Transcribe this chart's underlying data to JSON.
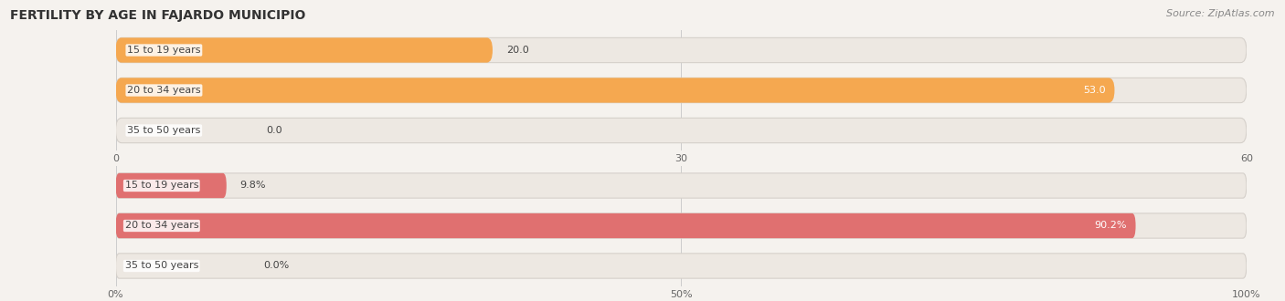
{
  "title": "FERTILITY BY AGE IN FAJARDO MUNICIPIO",
  "source": "Source: ZipAtlas.com",
  "top_chart": {
    "categories": [
      "15 to 19 years",
      "20 to 34 years",
      "35 to 50 years"
    ],
    "values": [
      20.0,
      53.0,
      0.0
    ],
    "xlim": [
      0,
      60
    ],
    "xticks": [
      0.0,
      30.0,
      60.0
    ],
    "bar_color": "#F5A850",
    "bar_bg_color": "#EDE8E2",
    "value_labels": [
      "20.0",
      "53.0",
      "0.0"
    ],
    "show_percent": false
  },
  "bottom_chart": {
    "categories": [
      "15 to 19 years",
      "20 to 34 years",
      "35 to 50 years"
    ],
    "values": [
      9.8,
      90.2,
      0.0
    ],
    "xlim": [
      0,
      100
    ],
    "xticks": [
      0.0,
      50.0,
      100.0
    ],
    "bar_color": "#E07070",
    "bar_bg_color": "#EDE8E2",
    "value_labels": [
      "9.8%",
      "90.2%",
      "0.0%"
    ],
    "show_percent": true
  },
  "title_fontsize": 10,
  "source_fontsize": 8,
  "label_fontsize": 8,
  "value_fontsize": 8,
  "tick_fontsize": 8,
  "background_color": "#F5F2EE",
  "bar_height": 0.62,
  "text_color": "#444444",
  "tick_color": "#666666",
  "grid_color": "#CCCCCC"
}
